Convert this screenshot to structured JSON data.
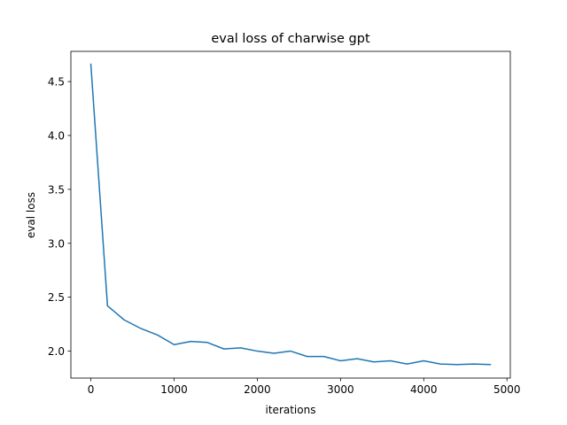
{
  "chart_data": {
    "type": "line",
    "title": "eval loss of charwise gpt",
    "xlabel": "iterations",
    "ylabel": "eval loss",
    "xlim": [
      -240,
      5040
    ],
    "ylim": [
      1.75,
      4.78
    ],
    "xticks": [
      0,
      1000,
      2000,
      3000,
      4000,
      5000
    ],
    "xtick_labels": [
      "0",
      "1000",
      "2000",
      "3000",
      "4000",
      "5000"
    ],
    "yticks": [
      2.0,
      2.5,
      3.0,
      3.5,
      4.0,
      4.5
    ],
    "ytick_labels": [
      "2.0",
      "2.5",
      "3.0",
      "3.5",
      "4.0",
      "4.5"
    ],
    "grid": false,
    "series": [
      {
        "color": "#1f77b4",
        "x": [
          0,
          200,
          400,
          600,
          800,
          1000,
          1200,
          1400,
          1600,
          1800,
          2000,
          2200,
          2400,
          2600,
          2800,
          3000,
          3200,
          3400,
          3600,
          3800,
          4000,
          4200,
          4400,
          4600,
          4800
        ],
        "y": [
          4.66,
          2.42,
          2.29,
          2.21,
          2.15,
          2.06,
          2.09,
          2.08,
          2.02,
          2.03,
          2.0,
          1.98,
          2.0,
          1.95,
          1.95,
          1.91,
          1.93,
          1.9,
          1.91,
          1.88,
          1.91,
          1.88,
          1.875,
          1.88,
          1.875
        ]
      }
    ]
  }
}
